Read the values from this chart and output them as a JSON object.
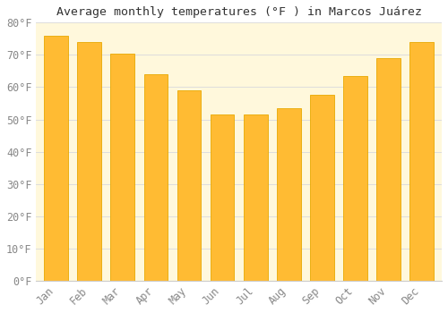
{
  "title": "Average monthly temperatures (°F ) in Marcos Juárez",
  "months": [
    "Jan",
    "Feb",
    "Mar",
    "Apr",
    "May",
    "Jun",
    "Jul",
    "Aug",
    "Sep",
    "Oct",
    "Nov",
    "Dec"
  ],
  "values": [
    76,
    74,
    70.5,
    64,
    59,
    51.5,
    51.5,
    53.5,
    57.5,
    63.5,
    69,
    74
  ],
  "bar_color": "#FFBB33",
  "bar_edge_color": "#E8A800",
  "plot_bg_color": "#FFF8DC",
  "fig_bg_color": "#FFFFFF",
  "grid_color": "#DDDDDD",
  "tick_label_color": "#888888",
  "title_color": "#333333",
  "ylim": [
    0,
    80
  ],
  "yticks": [
    0,
    10,
    20,
    30,
    40,
    50,
    60,
    70,
    80
  ],
  "title_fontsize": 9.5,
  "tick_fontsize": 8.5
}
